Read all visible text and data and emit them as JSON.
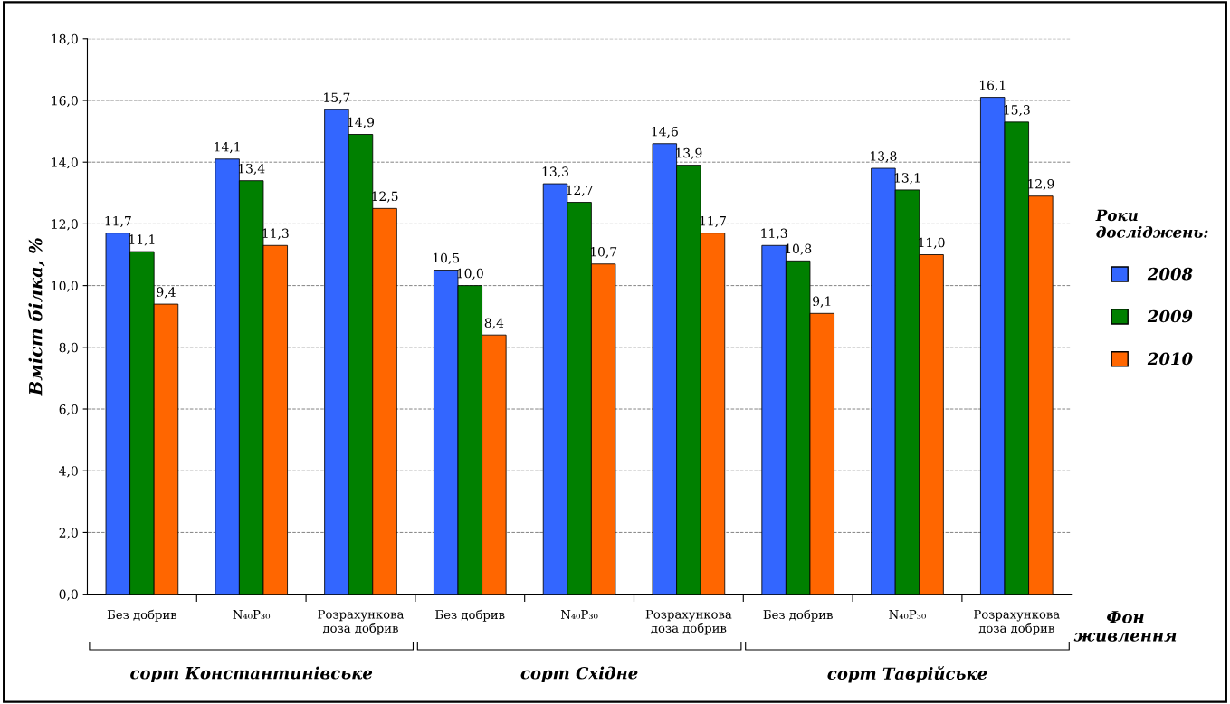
{
  "chart_data": {
    "type": "bar",
    "ylabel": "Вміст білка, %",
    "xlabel": "Фон\nживлення",
    "legend_title": "Роки\nдосліджень:",
    "categories": [
      "Без добрив",
      "N₄₀P₃₀",
      "Розрахункова\nдоза добрив",
      "Без добрив",
      "N₄₀P₃₀",
      "Розрахункова\nдоза добрив",
      "Без добрив",
      "N₄₀P₃₀",
      "Розрахункова\nдоза добрив"
    ],
    "series": [
      {
        "name": "2008",
        "color": "#3366ff",
        "values": [
          11.7,
          14.1,
          15.7,
          10.5,
          13.3,
          14.6,
          11.3,
          13.8,
          16.1
        ],
        "value_labels": [
          "11,7",
          "14,1",
          "15,7",
          "10,5",
          "13,3",
          "14,6",
          "11,3",
          "13,8",
          "16,1"
        ]
      },
      {
        "name": "2009",
        "color": "#008000",
        "values": [
          11.1,
          13.4,
          14.9,
          10.0,
          12.7,
          13.9,
          10.8,
          13.1,
          15.3
        ],
        "value_labels": [
          "11,1",
          "13,4",
          "14,9",
          "10,0",
          "12,7",
          "13,9",
          "10,8",
          "13,1",
          "15,3"
        ]
      },
      {
        "name": "2010",
        "color": "#ff6600",
        "values": [
          9.4,
          11.3,
          12.5,
          8.4,
          10.7,
          11.7,
          9.1,
          11.0,
          12.9
        ],
        "value_labels": [
          "9,4",
          "11,3",
          "12,5",
          "8,4",
          "10,7",
          "11,7",
          "9,1",
          "11,0",
          "12,9"
        ]
      }
    ],
    "annotations": [
      "сорт Константинівське",
      "сорт Східне",
      "сорт Таврійське"
    ],
    "ylim": [
      0,
      18
    ],
    "yticks": [
      {
        "value": 0,
        "label": "0,0"
      },
      {
        "value": 2,
        "label": "2,0"
      },
      {
        "value": 4,
        "label": "4,0"
      },
      {
        "value": 6,
        "label": "6,0"
      },
      {
        "value": 8,
        "label": "8,0"
      },
      {
        "value": 10,
        "label": "10,0"
      },
      {
        "value": 12,
        "label": "12,0"
      },
      {
        "value": 14,
        "label": "14,0"
      },
      {
        "value": 16,
        "label": "16,0"
      },
      {
        "value": 18,
        "label": "18,0"
      }
    ],
    "grid": "y",
    "legend": "right"
  }
}
